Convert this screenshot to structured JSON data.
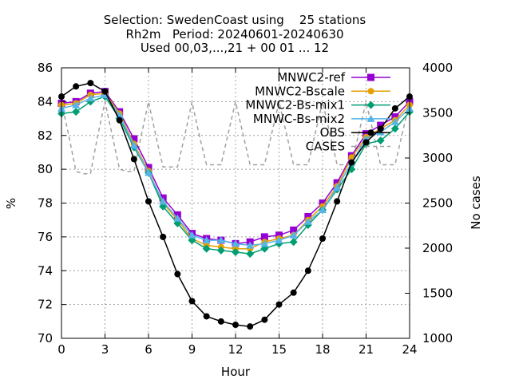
{
  "chart_data": {
    "type": "line",
    "title_lines": [
      "Selection: SwedenCoast using    25 stations",
      "Rh2m   Period: 20240601-20240630",
      "Used 00,03,...,21 + 00 01 ... 12"
    ],
    "xlabel": "Hour",
    "ylabel": "%",
    "y2label": "No cases",
    "xlim": [
      0,
      24
    ],
    "ylim": [
      70,
      86
    ],
    "y2lim": [
      1000,
      4000
    ],
    "x_ticks": [
      0,
      3,
      6,
      9,
      12,
      15,
      18,
      21,
      24
    ],
    "y_ticks": [
      70,
      72,
      74,
      76,
      78,
      80,
      82,
      84,
      86
    ],
    "y2_ticks": [
      1000,
      1500,
      2000,
      2500,
      3000,
      3500,
      4000
    ],
    "grid": true,
    "legend_position": "top-right",
    "x": [
      0,
      1,
      2,
      3,
      4,
      5,
      6,
      7,
      8,
      9,
      10,
      11,
      12,
      13,
      14,
      15,
      16,
      17,
      18,
      19,
      20,
      21,
      22,
      23,
      24
    ],
    "series": [
      {
        "name": "MNWC2-ref",
        "color": "#9400d3",
        "marker": "plus-square",
        "axis": "y1",
        "values": [
          83.9,
          84.0,
          84.5,
          84.6,
          83.4,
          81.8,
          80.1,
          78.3,
          77.3,
          76.2,
          75.9,
          75.8,
          75.6,
          75.7,
          76.0,
          76.1,
          76.4,
          77.2,
          78.0,
          79.2,
          80.8,
          82.1,
          82.6,
          83.1,
          84.0
        ]
      },
      {
        "name": "MNWC2-Bscale",
        "color": "#e69f00",
        "marker": "circle",
        "axis": "y1",
        "values": [
          83.8,
          83.9,
          84.4,
          84.5,
          83.3,
          81.5,
          79.9,
          78.0,
          77.0,
          75.9,
          75.5,
          75.4,
          75.3,
          75.3,
          75.7,
          75.9,
          76.1,
          77.0,
          77.8,
          79.0,
          80.7,
          81.9,
          82.4,
          82.9,
          83.8
        ]
      },
      {
        "name": "MNWC2-Bs-mix1",
        "color": "#009e73",
        "marker": "diamond",
        "axis": "y1",
        "values": [
          83.3,
          83.4,
          84.0,
          84.3,
          83.0,
          81.3,
          79.8,
          77.8,
          76.8,
          75.8,
          75.3,
          75.2,
          75.1,
          75.0,
          75.3,
          75.6,
          75.7,
          76.7,
          77.6,
          78.8,
          80.0,
          81.5,
          81.7,
          82.4,
          83.4
        ]
      },
      {
        "name": "MNWC-Bs-mix2",
        "color": "#56b4e9",
        "marker": "triangle",
        "axis": "y1",
        "values": [
          83.6,
          83.8,
          84.2,
          84.4,
          83.2,
          81.4,
          79.8,
          78.1,
          77.1,
          76.1,
          75.8,
          75.8,
          75.6,
          75.5,
          75.6,
          75.8,
          76.1,
          76.9,
          77.6,
          78.9,
          80.4,
          81.8,
          82.2,
          82.8,
          83.6
        ]
      },
      {
        "name": "OBS",
        "color": "#000000",
        "marker": "filled-circle",
        "axis": "y1",
        "values": [
          84.3,
          84.9,
          85.1,
          84.6,
          82.9,
          80.6,
          78.1,
          76.0,
          73.8,
          72.2,
          71.3,
          71.0,
          70.8,
          70.7,
          71.1,
          72.0,
          72.7,
          74.0,
          75.9,
          78.1,
          80.4,
          81.6,
          82.4,
          83.6,
          84.3
        ]
      },
      {
        "name": "CASES",
        "color": "#a0a0a0",
        "marker": "none",
        "dashed": true,
        "axis": "y2",
        "x": [
          0,
          0.5,
          1,
          1.5,
          2,
          2.5,
          3,
          3.5,
          4,
          4.5,
          5,
          5.5,
          6,
          6.5,
          7,
          7.5,
          8,
          8.5,
          9,
          9.5,
          10,
          10.5,
          11,
          11.5,
          12,
          12.5,
          13,
          13.5,
          14,
          14.5,
          15,
          15.5,
          16,
          16.5,
          17,
          17.5,
          18,
          18.5,
          19,
          19.5,
          20,
          20.5,
          21,
          21.5,
          22,
          22.5,
          23,
          23.5,
          24
        ],
        "values": [
          3625,
          3250,
          2850,
          2825,
          2825,
          3250,
          3625,
          3250,
          2875,
          2850,
          2850,
          3250,
          3625,
          3250,
          2900,
          2900,
          2900,
          3250,
          3625,
          3250,
          2925,
          2925,
          2925,
          3275,
          3625,
          3275,
          2925,
          2925,
          2925,
          3275,
          3625,
          3275,
          2925,
          2925,
          2925,
          3275,
          3625,
          3275,
          2925,
          2925,
          2925,
          3275,
          3625,
          3275,
          2925,
          2925,
          2925,
          3275,
          3625
        ]
      }
    ]
  }
}
